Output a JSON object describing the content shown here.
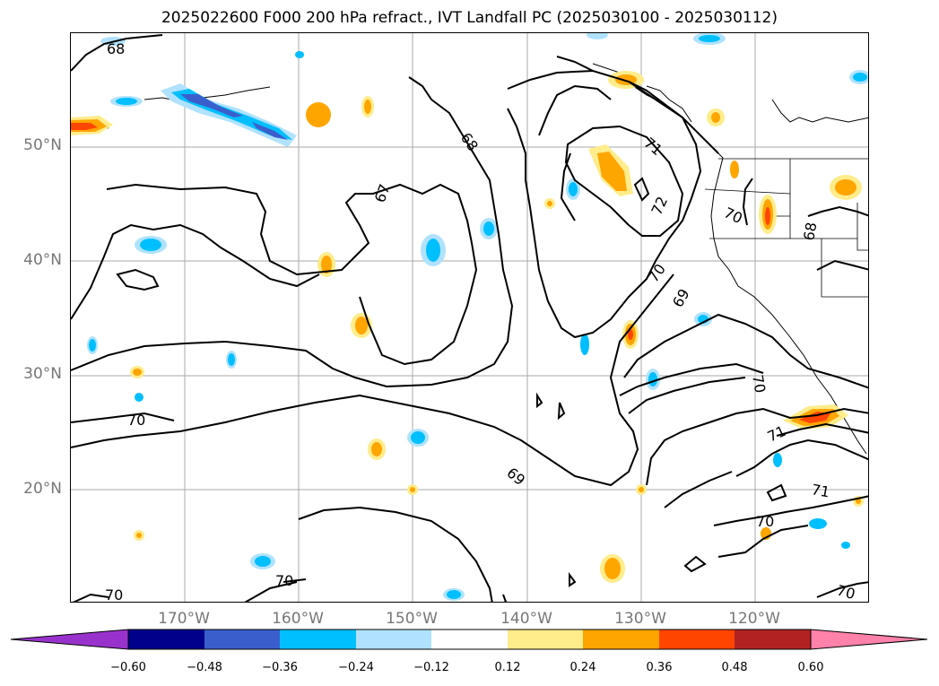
{
  "title": "2025022600 F000 200 hPa refract., IVT Landfall PC (2025030100 - 2025030112)",
  "lat_labels": [
    "50°N",
    "40°N",
    "30°N",
    "20°N"
  ],
  "lon_labels": [
    "170°W",
    "160°W",
    "150°W",
    "140°W",
    "130°W",
    "120°W"
  ],
  "contour_labels": [
    "68",
    "68",
    "67",
    "72",
    "71",
    "70",
    "70",
    "69",
    "68",
    "70",
    "70",
    "71",
    "69",
    "71",
    "70",
    "70",
    "70",
    "70"
  ],
  "colorbar": {
    "ticks": [
      "−0.60",
      "−0.48",
      "−0.36",
      "−0.24",
      "−0.12",
      "0.12",
      "0.24",
      "0.36",
      "0.48",
      "0.60"
    ],
    "colors": [
      "#9932cc",
      "#00008b",
      "#3a5fcd",
      "#00bfff",
      "#b0e2ff",
      "#ffffff",
      "#ffec8b",
      "#ffa500",
      "#ff4500",
      "#b22222",
      "#ff82ab"
    ]
  }
}
